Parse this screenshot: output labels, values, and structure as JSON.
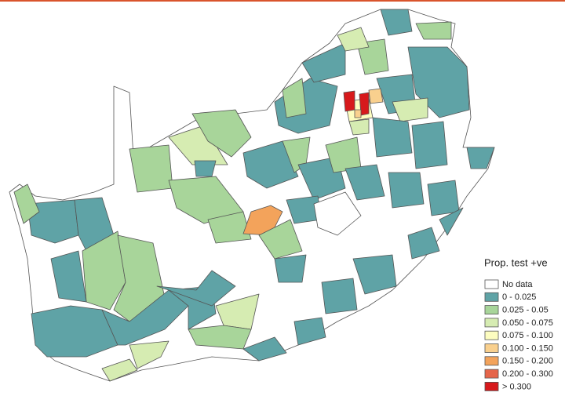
{
  "legend": {
    "title": "Prop. test +ve",
    "items": [
      {
        "label": "No data",
        "color": "#ffffff"
      },
      {
        "label": "0 - 0.025",
        "color": "#5fa3a6"
      },
      {
        "label": "0.025 - 0.05",
        "color": "#a8d59a"
      },
      {
        "label": "0.050 - 0.075",
        "color": "#d6ecb2"
      },
      {
        "label": "0.075 - 0.100",
        "color": "#fdfdc0"
      },
      {
        "label": "0.100 - 0.150",
        "color": "#f9d08e"
      },
      {
        "label": "0.150 - 0.200",
        "color": "#f3a35b"
      },
      {
        "label": "0.200 - 0.300",
        "color": "#e5654a"
      },
      {
        "label": "> 0.300",
        "color": "#d7191c"
      }
    ]
  }
}
